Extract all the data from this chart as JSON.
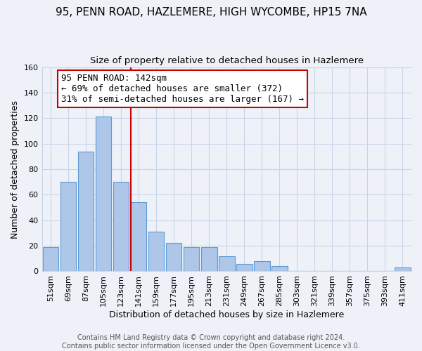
{
  "title": "95, PENN ROAD, HAZLEMERE, HIGH WYCOMBE, HP15 7NA",
  "subtitle": "Size of property relative to detached houses in Hazlemere",
  "xlabel": "Distribution of detached houses by size in Hazlemere",
  "ylabel": "Number of detached properties",
  "footer_line1": "Contains HM Land Registry data © Crown copyright and database right 2024.",
  "footer_line2": "Contains public sector information licensed under the Open Government Licence v3.0.",
  "bar_labels": [
    "51sqm",
    "69sqm",
    "87sqm",
    "105sqm",
    "123sqm",
    "141sqm",
    "159sqm",
    "177sqm",
    "195sqm",
    "213sqm",
    "231sqm",
    "249sqm",
    "267sqm",
    "285sqm",
    "303sqm",
    "321sqm",
    "339sqm",
    "357sqm",
    "375sqm",
    "393sqm",
    "411sqm"
  ],
  "bar_values": [
    19,
    70,
    94,
    121,
    70,
    54,
    31,
    22,
    19,
    19,
    12,
    6,
    8,
    4,
    0,
    0,
    0,
    0,
    0,
    0,
    3
  ],
  "bar_color": "#aec6e8",
  "bar_edge_color": "#5b9bd5",
  "highlight_line_color": "#cc0000",
  "highlight_line_index": 5,
  "annotation_title": "95 PENN ROAD: 142sqm",
  "annotation_line1": "← 69% of detached houses are smaller (372)",
  "annotation_line2": "31% of semi-detached houses are larger (167) →",
  "annotation_box_color": "#ffffff",
  "annotation_box_edge_color": "#cc0000",
  "ylim": [
    0,
    160
  ],
  "yticks": [
    0,
    20,
    40,
    60,
    80,
    100,
    120,
    140,
    160
  ],
  "title_fontsize": 11,
  "subtitle_fontsize": 9.5,
  "xlabel_fontsize": 9,
  "ylabel_fontsize": 9,
  "tick_fontsize": 8,
  "annotation_fontsize": 9,
  "footer_fontsize": 7,
  "grid_color": "#c8d4e8",
  "background_color": "#eef2f8"
}
